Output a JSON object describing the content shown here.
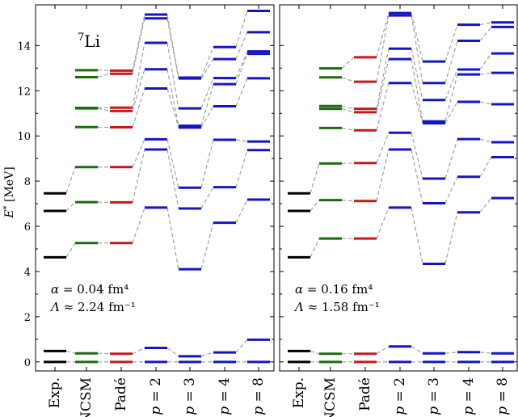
{
  "chart_data": [
    {
      "type": "level-scheme",
      "nucleus_mass": "7",
      "nucleus_symbol": "Li",
      "ylabel": "E* [MeV]",
      "ylim": [
        -0.4,
        15.8
      ],
      "yticks": [
        0,
        2,
        4,
        6,
        8,
        10,
        12,
        14
      ],
      "grid": false,
      "categories": [
        "Exp.",
        "NCSM",
        "Padé",
        "p = 2",
        "p = 3",
        "p = 4",
        "p = 8"
      ],
      "category_colors": [
        "#000000",
        "#1d6b10",
        "#c8181c",
        "#1515c8",
        "#1515c8",
        "#1515c8",
        "#1515c8"
      ],
      "annotation_line1": "α = 0.04 fm⁴",
      "annotation_line2": "Λ ≈ 2.24 fm⁻¹",
      "levels": [
        [
          0,
          0,
          0,
          0,
          0,
          0,
          0
        ],
        [
          0.48,
          0.38,
          0.36,
          0.62,
          0.25,
          0.42,
          0.98
        ],
        [
          4.63,
          5.26,
          5.26,
          6.83,
          4.1,
          6.16,
          7.18
        ],
        [
          6.68,
          7.07,
          7.06,
          9.4,
          6.79,
          7.73,
          9.37
        ],
        [
          7.46,
          8.62,
          8.62,
          9.85,
          7.71,
          9.83,
          9.75
        ],
        [
          null,
          10.39,
          10.38,
          12.1,
          10.37,
          11.31,
          12.55
        ],
        [
          null,
          11.22,
          11.1,
          12.95,
          10.45,
          12.29,
          13.63
        ],
        [
          null,
          11.24,
          11.25,
          14.12,
          11.22,
          12.56,
          13.74
        ],
        [
          null,
          12.6,
          12.75,
          15.2,
          12.54,
          13.4,
          14.59
        ],
        [
          null,
          12.91,
          12.89,
          15.37,
          12.58,
          13.93,
          15.53
        ]
      ]
    },
    {
      "type": "level-scheme",
      "ylim": [
        -0.4,
        15.8
      ],
      "categories": [
        "Exp.",
        "NCSM",
        "Padé",
        "p = 2",
        "p = 3",
        "p = 4",
        "p = 8"
      ],
      "category_colors": [
        "#000000",
        "#1d6b10",
        "#c8181c",
        "#1515c8",
        "#1515c8",
        "#1515c8",
        "#1515c8"
      ],
      "annotation_line1": "α = 0.16 fm⁴",
      "annotation_line2": "Λ ≈ 1.58 fm⁻¹",
      "levels": [
        [
          0,
          0,
          0,
          0,
          0,
          0,
          0
        ],
        [
          0.48,
          0.36,
          0.36,
          0.68,
          0.38,
          0.43,
          0.38
        ],
        [
          4.63,
          5.46,
          5.46,
          6.83,
          4.34,
          6.62,
          7.25
        ],
        [
          6.68,
          7.16,
          7.12,
          9.4,
          7.02,
          8.19,
          9.06
        ],
        [
          7.46,
          8.78,
          8.8,
          10.14,
          8.11,
          9.86,
          9.72
        ],
        [
          null,
          10.35,
          10.25,
          12.34,
          10.56,
          11.51,
          11.4
        ],
        [
          null,
          11.2,
          11.05,
          13.4,
          10.64,
          12.72,
          12.79
        ],
        [
          null,
          11.32,
          11.2,
          13.86,
          11.59,
          12.94,
          13.65
        ],
        [
          null,
          12.59,
          12.4,
          15.33,
          12.34,
          14.21,
          14.82
        ],
        [
          null,
          12.99,
          13.48,
          15.44,
          13.29,
          14.92,
          15.02
        ]
      ]
    }
  ]
}
